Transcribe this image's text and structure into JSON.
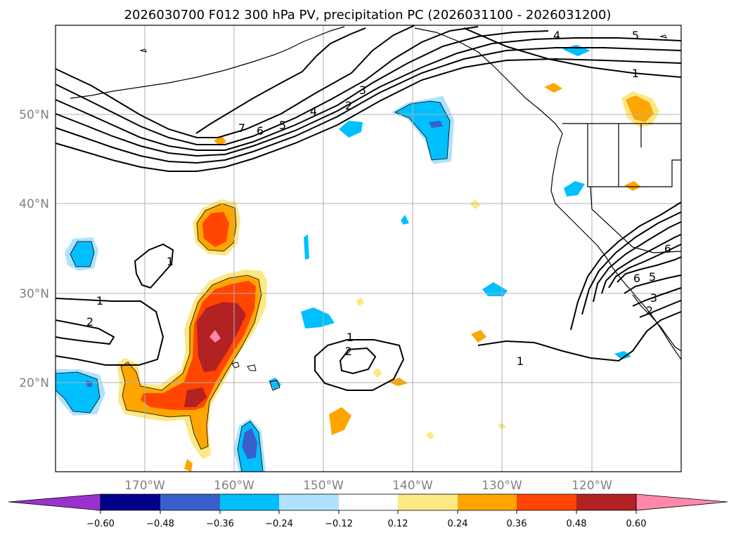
{
  "title": "2026030700 F012 300 hPa PV, precipitation PC (2026031100 - 2026031200)",
  "map": {
    "lon_ticks": [
      "170°W",
      "160°W",
      "150°W",
      "140°W",
      "130°W",
      "120°W"
    ],
    "lat_ticks": [
      "50°N",
      "40°N",
      "30°N",
      "20°N"
    ],
    "lon_range": [
      -180,
      -110
    ],
    "lat_range": [
      10,
      60
    ],
    "contour_labels": [
      "1",
      "2",
      "3",
      "4",
      "5",
      "6",
      "7",
      "1",
      "1",
      "2",
      "1",
      "2",
      "1",
      "1",
      "4",
      "5",
      "1",
      "6",
      "5",
      "6",
      "3",
      "2"
    ]
  },
  "colorbar": {
    "ticks": [
      "−0.60",
      "−0.48",
      "−0.36",
      "−0.24",
      "−0.12",
      "0.12",
      "0.24",
      "0.36",
      "0.48",
      "0.60"
    ],
    "colors": [
      "#9932cc",
      "#00008b",
      "#3a5fcd",
      "#00bfff",
      "#b0e2ff",
      "#ffffff",
      "#fce884",
      "#ffa500",
      "#ff4500",
      "#b22222",
      "#ff88aa"
    ]
  },
  "colors": {
    "pos1": "#fce884",
    "pos2": "#ffa500",
    "pos3": "#ff4500",
    "pos4": "#b22222",
    "pos5": "#ff88aa",
    "neg1": "#b0e2ff",
    "neg2": "#00bfff",
    "neg3": "#3a5fcd",
    "neg4": "#00008b"
  }
}
